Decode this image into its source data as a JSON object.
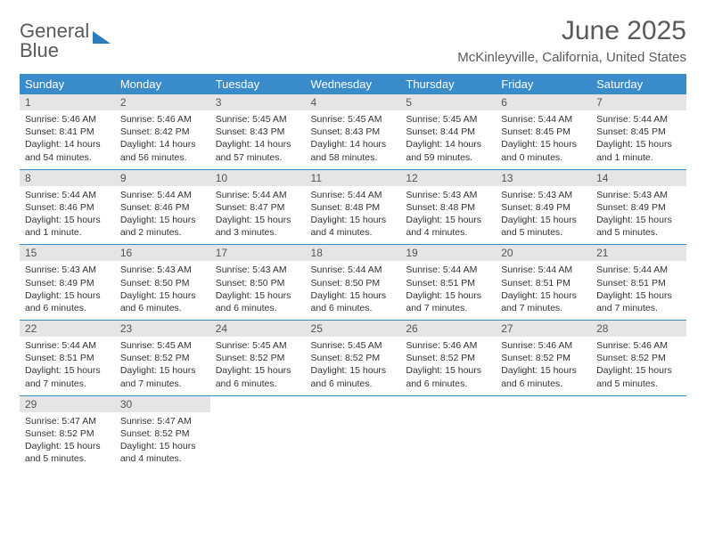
{
  "logo": {
    "line1": "General",
    "line2": "Blue"
  },
  "title": "June 2025",
  "location": "McKinleyville, California, United States",
  "colors": {
    "header_bg": "#3a8bc9",
    "header_text": "#ffffff",
    "daynum_bg": "#e5e5e5",
    "row_divider": "#3a8bc9",
    "brand_blue": "#2b7bbf",
    "text": "#333333",
    "muted": "#5a5a5a",
    "page_bg": "#ffffff"
  },
  "typography": {
    "title_fontsize": 30,
    "location_fontsize": 15,
    "dayhead_fontsize": 13,
    "daynum_fontsize": 12,
    "body_fontsize": 10.5
  },
  "daynames": [
    "Sunday",
    "Monday",
    "Tuesday",
    "Wednesday",
    "Thursday",
    "Friday",
    "Saturday"
  ],
  "weeks": [
    [
      {
        "n": "1",
        "sr": "Sunrise: 5:46 AM",
        "ss": "Sunset: 8:41 PM",
        "dl1": "Daylight: 14 hours",
        "dl2": "and 54 minutes."
      },
      {
        "n": "2",
        "sr": "Sunrise: 5:46 AM",
        "ss": "Sunset: 8:42 PM",
        "dl1": "Daylight: 14 hours",
        "dl2": "and 56 minutes."
      },
      {
        "n": "3",
        "sr": "Sunrise: 5:45 AM",
        "ss": "Sunset: 8:43 PM",
        "dl1": "Daylight: 14 hours",
        "dl2": "and 57 minutes."
      },
      {
        "n": "4",
        "sr": "Sunrise: 5:45 AM",
        "ss": "Sunset: 8:43 PM",
        "dl1": "Daylight: 14 hours",
        "dl2": "and 58 minutes."
      },
      {
        "n": "5",
        "sr": "Sunrise: 5:45 AM",
        "ss": "Sunset: 8:44 PM",
        "dl1": "Daylight: 14 hours",
        "dl2": "and 59 minutes."
      },
      {
        "n": "6",
        "sr": "Sunrise: 5:44 AM",
        "ss": "Sunset: 8:45 PM",
        "dl1": "Daylight: 15 hours",
        "dl2": "and 0 minutes."
      },
      {
        "n": "7",
        "sr": "Sunrise: 5:44 AM",
        "ss": "Sunset: 8:45 PM",
        "dl1": "Daylight: 15 hours",
        "dl2": "and 1 minute."
      }
    ],
    [
      {
        "n": "8",
        "sr": "Sunrise: 5:44 AM",
        "ss": "Sunset: 8:46 PM",
        "dl1": "Daylight: 15 hours",
        "dl2": "and 1 minute."
      },
      {
        "n": "9",
        "sr": "Sunrise: 5:44 AM",
        "ss": "Sunset: 8:46 PM",
        "dl1": "Daylight: 15 hours",
        "dl2": "and 2 minutes."
      },
      {
        "n": "10",
        "sr": "Sunrise: 5:44 AM",
        "ss": "Sunset: 8:47 PM",
        "dl1": "Daylight: 15 hours",
        "dl2": "and 3 minutes."
      },
      {
        "n": "11",
        "sr": "Sunrise: 5:44 AM",
        "ss": "Sunset: 8:48 PM",
        "dl1": "Daylight: 15 hours",
        "dl2": "and 4 minutes."
      },
      {
        "n": "12",
        "sr": "Sunrise: 5:43 AM",
        "ss": "Sunset: 8:48 PM",
        "dl1": "Daylight: 15 hours",
        "dl2": "and 4 minutes."
      },
      {
        "n": "13",
        "sr": "Sunrise: 5:43 AM",
        "ss": "Sunset: 8:49 PM",
        "dl1": "Daylight: 15 hours",
        "dl2": "and 5 minutes."
      },
      {
        "n": "14",
        "sr": "Sunrise: 5:43 AM",
        "ss": "Sunset: 8:49 PM",
        "dl1": "Daylight: 15 hours",
        "dl2": "and 5 minutes."
      }
    ],
    [
      {
        "n": "15",
        "sr": "Sunrise: 5:43 AM",
        "ss": "Sunset: 8:49 PM",
        "dl1": "Daylight: 15 hours",
        "dl2": "and 6 minutes."
      },
      {
        "n": "16",
        "sr": "Sunrise: 5:43 AM",
        "ss": "Sunset: 8:50 PM",
        "dl1": "Daylight: 15 hours",
        "dl2": "and 6 minutes."
      },
      {
        "n": "17",
        "sr": "Sunrise: 5:43 AM",
        "ss": "Sunset: 8:50 PM",
        "dl1": "Daylight: 15 hours",
        "dl2": "and 6 minutes."
      },
      {
        "n": "18",
        "sr": "Sunrise: 5:44 AM",
        "ss": "Sunset: 8:50 PM",
        "dl1": "Daylight: 15 hours",
        "dl2": "and 6 minutes."
      },
      {
        "n": "19",
        "sr": "Sunrise: 5:44 AM",
        "ss": "Sunset: 8:51 PM",
        "dl1": "Daylight: 15 hours",
        "dl2": "and 7 minutes."
      },
      {
        "n": "20",
        "sr": "Sunrise: 5:44 AM",
        "ss": "Sunset: 8:51 PM",
        "dl1": "Daylight: 15 hours",
        "dl2": "and 7 minutes."
      },
      {
        "n": "21",
        "sr": "Sunrise: 5:44 AM",
        "ss": "Sunset: 8:51 PM",
        "dl1": "Daylight: 15 hours",
        "dl2": "and 7 minutes."
      }
    ],
    [
      {
        "n": "22",
        "sr": "Sunrise: 5:44 AM",
        "ss": "Sunset: 8:51 PM",
        "dl1": "Daylight: 15 hours",
        "dl2": "and 7 minutes."
      },
      {
        "n": "23",
        "sr": "Sunrise: 5:45 AM",
        "ss": "Sunset: 8:52 PM",
        "dl1": "Daylight: 15 hours",
        "dl2": "and 7 minutes."
      },
      {
        "n": "24",
        "sr": "Sunrise: 5:45 AM",
        "ss": "Sunset: 8:52 PM",
        "dl1": "Daylight: 15 hours",
        "dl2": "and 6 minutes."
      },
      {
        "n": "25",
        "sr": "Sunrise: 5:45 AM",
        "ss": "Sunset: 8:52 PM",
        "dl1": "Daylight: 15 hours",
        "dl2": "and 6 minutes."
      },
      {
        "n": "26",
        "sr": "Sunrise: 5:46 AM",
        "ss": "Sunset: 8:52 PM",
        "dl1": "Daylight: 15 hours",
        "dl2": "and 6 minutes."
      },
      {
        "n": "27",
        "sr": "Sunrise: 5:46 AM",
        "ss": "Sunset: 8:52 PM",
        "dl1": "Daylight: 15 hours",
        "dl2": "and 6 minutes."
      },
      {
        "n": "28",
        "sr": "Sunrise: 5:46 AM",
        "ss": "Sunset: 8:52 PM",
        "dl1": "Daylight: 15 hours",
        "dl2": "and 5 minutes."
      }
    ],
    [
      {
        "n": "29",
        "sr": "Sunrise: 5:47 AM",
        "ss": "Sunset: 8:52 PM",
        "dl1": "Daylight: 15 hours",
        "dl2": "and 5 minutes."
      },
      {
        "n": "30",
        "sr": "Sunrise: 5:47 AM",
        "ss": "Sunset: 8:52 PM",
        "dl1": "Daylight: 15 hours",
        "dl2": "and 4 minutes."
      },
      {
        "empty": true
      },
      {
        "empty": true
      },
      {
        "empty": true
      },
      {
        "empty": true
      },
      {
        "empty": true
      }
    ]
  ]
}
